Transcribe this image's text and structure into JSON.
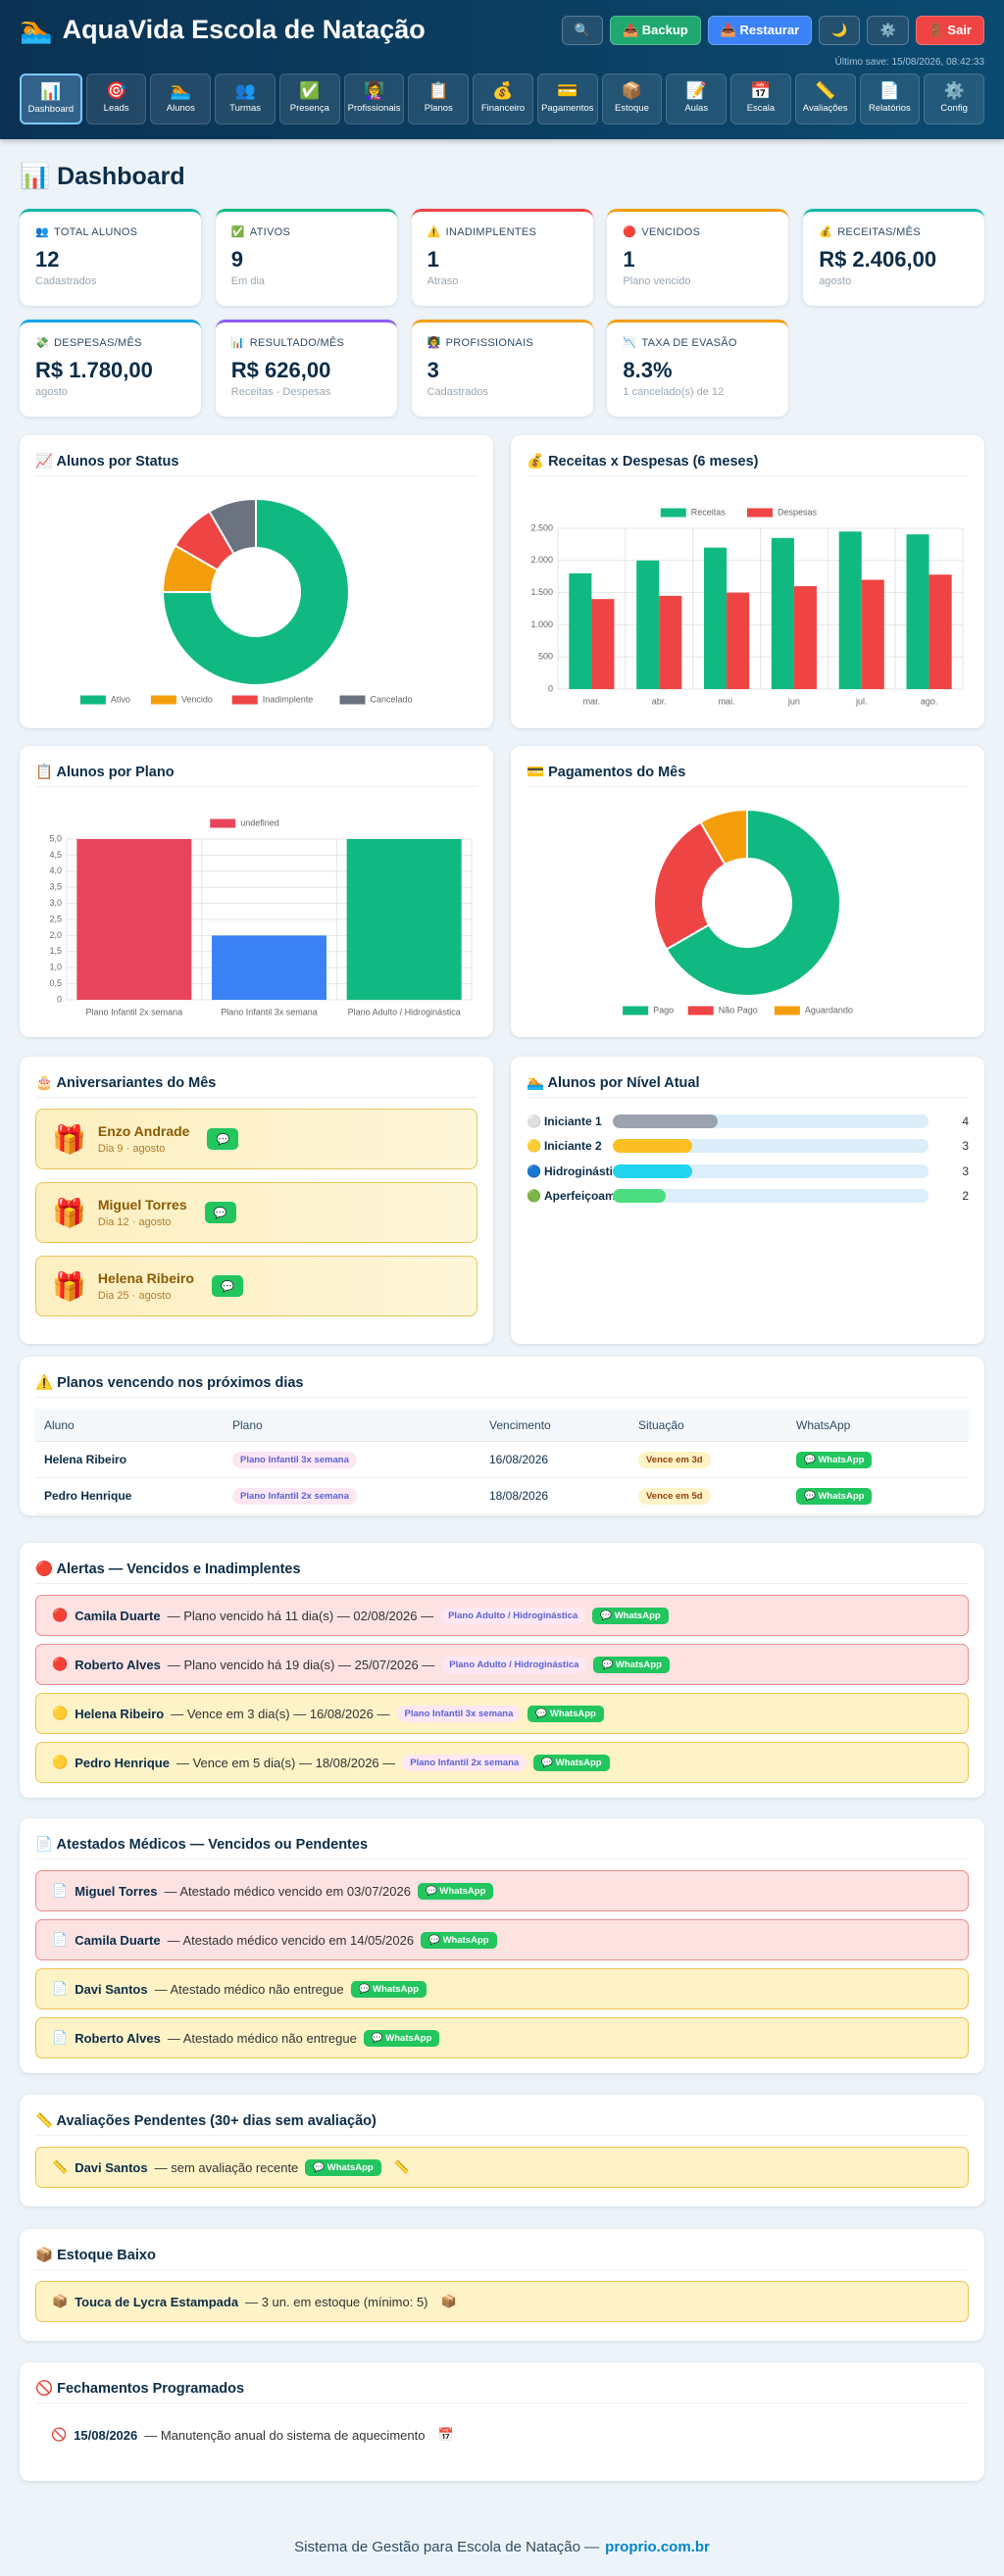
{
  "header": {
    "logo": "🏊",
    "title": "AquaVida Escola de Natação",
    "buttons": [
      {
        "label": "🔍",
        "color": "#24506f"
      },
      {
        "label": "📤 Backup",
        "color": "#1fa971"
      },
      {
        "label": "📥 Restaurar",
        "color": "#3b82f6"
      },
      {
        "label": "🌙",
        "color": "#24506f"
      },
      {
        "label": "⚙️",
        "color": "#24506f"
      },
      {
        "label": "🚪 Sair",
        "color": "#ef4444"
      }
    ],
    "last_save": "Último save: 15/08/2026, 08:42:33"
  },
  "nav": [
    {
      "icon": "📊",
      "label": "Dashboard",
      "active": true
    },
    {
      "icon": "🎯",
      "label": "Leads"
    },
    {
      "icon": "🏊",
      "label": "Alunos"
    },
    {
      "icon": "👥",
      "label": "Turmas"
    },
    {
      "icon": "✅",
      "label": "Presença"
    },
    {
      "icon": "👩‍🏫",
      "label": "Profissionais"
    },
    {
      "icon": "📋",
      "label": "Planos"
    },
    {
      "icon": "💰",
      "label": "Financeiro"
    },
    {
      "icon": "💳",
      "label": "Pagamentos"
    },
    {
      "icon": "📦",
      "label": "Estoque"
    },
    {
      "icon": "📝",
      "label": "Aulas"
    },
    {
      "icon": "📅",
      "label": "Escala"
    },
    {
      "icon": "📏",
      "label": "Avaliações"
    },
    {
      "icon": "📄",
      "label": "Relatórios"
    },
    {
      "icon": "⚙️",
      "label": "Config"
    }
  ],
  "page_title": "📊 Dashboard",
  "stats": [
    {
      "icon": "👥",
      "label": "TOTAL ALUNOS",
      "value": "12",
      "sub": "Cadastrados",
      "color": "#14b8a6"
    },
    {
      "icon": "✅",
      "label": "ATIVOS",
      "value": "9",
      "sub": "Em dia",
      "color": "#10b981"
    },
    {
      "icon": "⚠️",
      "label": "INADIMPLENTES",
      "value": "1",
      "sub": "Atraso",
      "color": "#ef4444"
    },
    {
      "icon": "🔴",
      "label": "VENCIDOS",
      "value": "1",
      "sub": "Plano vencido",
      "color": "#f59e0b"
    },
    {
      "icon": "💰",
      "label": "RECEITAS/MÊS",
      "value": "R$ 2.406,00",
      "sub": "agosto",
      "color": "#14b8a6"
    },
    {
      "icon": "💸",
      "label": "DESPESAS/MÊS",
      "value": "R$ 1.780,00",
      "sub": "agosto",
      "color": "#0ea5e9"
    },
    {
      "icon": "📊",
      "label": "RESULTADO/MÊS",
      "value": "R$ 626,00",
      "sub": "Receitas - Despesas",
      "color": "#8b5cf6"
    },
    {
      "icon": "👩‍🏫",
      "label": "PROFISSIONAIS",
      "value": "3",
      "sub": "Cadastrados",
      "color": "#f59e0b"
    },
    {
      "icon": "📉",
      "label": "TAXA DE EVASÃO",
      "value": "8.3%",
      "sub": "1 cancelado(s) de 12",
      "color": "#f59e0b"
    }
  ],
  "chart_data": [
    {
      "type": "pie",
      "title": "📈 Alunos por Status",
      "legend": "bottom",
      "categories": [
        "Ativo",
        "Vencido",
        "Inadimplente",
        "Cancelado"
      ],
      "values": [
        9,
        1,
        1,
        1
      ],
      "colors": [
        "#10b981",
        "#f59e0b",
        "#ef4444",
        "#6b7280"
      ]
    },
    {
      "type": "bar",
      "title": "💰 Receitas x Despesas (6 meses)",
      "legend": "top",
      "grid": true,
      "categories": [
        "mar.",
        "abr.",
        "mai.",
        "jun",
        "jul.",
        "ago."
      ],
      "series": [
        {
          "name": "Receitas",
          "color": "#10b981",
          "values": [
            1800,
            2000,
            2200,
            2350,
            2450,
            2406
          ]
        },
        {
          "name": "Despesas",
          "color": "#ef4444",
          "values": [
            1400,
            1450,
            1500,
            1600,
            1700,
            1780
          ]
        }
      ],
      "ylim": [
        0,
        2500
      ],
      "yticks": [
        0,
        500,
        {
          "value": 1000,
          "label": "1.000"
        },
        {
          "value": 1500,
          "label": "1.500"
        },
        {
          "value": 2000,
          "label": "2.000"
        },
        {
          "value": 2500,
          "label": "2.500"
        }
      ]
    },
    {
      "type": "bar",
      "title": "📋 Alunos por Plano",
      "legend": "top",
      "grid": true,
      "categories": [
        "Plano Infantil 2x semana",
        "Plano Infantil 3x semana",
        "Plano Adulto / Hidroginástica"
      ],
      "series": [
        {
          "name": "undefined",
          "color": "#e8455c",
          "values": [
            5,
            2,
            5
          ]
        }
      ],
      "colors": [
        "#e8455c",
        "#3b82f6",
        "#10b981"
      ],
      "ylim": [
        0,
        5
      ],
      "yticks": [
        0,
        {
          "value": 0.5,
          "label": "0,5"
        },
        {
          "value": 1,
          "label": "1,0"
        },
        {
          "value": 1.5,
          "label": "1,5"
        },
        {
          "value": 2,
          "label": "2,0"
        },
        {
          "value": 2.5,
          "label": "2,5"
        },
        {
          "value": 3,
          "label": "3,0"
        },
        {
          "value": 3.5,
          "label": "3,5"
        },
        {
          "value": 4,
          "label": "4,0"
        },
        {
          "value": 4.5,
          "label": "4,5"
        },
        {
          "value": 5,
          "label": "5,0"
        }
      ]
    },
    {
      "type": "pie",
      "title": "💳 Pagamentos do Mês",
      "legend": "bottom",
      "categories": [
        "Pago",
        "Não Pago",
        "Aguardando"
      ],
      "values": [
        8,
        3,
        1
      ],
      "colors": [
        "#10b981",
        "#ef4444",
        "#f59e0b"
      ]
    }
  ],
  "birthdays": {
    "title": "🎂 Aniversariantes do Mês",
    "icon": "🎁",
    "button": "💬",
    "items": [
      {
        "name": "Enzo Andrade",
        "date": "Dia 9 · agosto"
      },
      {
        "name": "Miguel Torres",
        "date": "Dia 12 · agosto"
      },
      {
        "name": "Helena Ribeiro",
        "date": "Dia 25 · agosto"
      }
    ]
  },
  "levels": {
    "title": "🏊 Alunos por Nível Atual",
    "items": [
      {
        "icon": "⚪",
        "name": "Iniciante 1",
        "count": 4,
        "color": "#9ca3af"
      },
      {
        "icon": "🟡",
        "name": "Iniciante 2",
        "count": 3,
        "color": "#fbbf24"
      },
      {
        "icon": "🔵",
        "name": "Hidroginástica",
        "count": 3,
        "color": "#22d3ee"
      },
      {
        "icon": "🟢",
        "name": "Aperfeiçoamento",
        "count": 2,
        "color": "#4ade80"
      }
    ]
  },
  "expiring": {
    "title": "⚠️ Planos vencendo nos próximos dias",
    "columns": [
      "Aluno",
      "Plano",
      "Vencimento",
      "Situação",
      "WhatsApp"
    ],
    "rows": [
      [
        "Helena Ribeiro",
        "Plano Infantil 3x semana",
        "16/08/2026",
        "Vence em 3d",
        "💬 WhatsApp"
      ],
      [
        "Pedro Henrique",
        "Plano Infantil 2x semana",
        "18/08/2026",
        "Vence em 5d",
        "💬 WhatsApp"
      ]
    ]
  },
  "alerts": {
    "title": "🔴 Alertas — Vencidos e Inadimplentes",
    "items": [
      {
        "level": "red",
        "icon": "🔴",
        "name": "Camila Duarte",
        "text": "— Plano vencido há 11 dia(s) — 02/08/2026 —",
        "plan": "Plano Adulto / Hidroginástica",
        "button": "💬 WhatsApp"
      },
      {
        "level": "red",
        "icon": "🔴",
        "name": "Roberto Alves",
        "text": "— Plano vencido há 19 dia(s) — 25/07/2026 —",
        "plan": "Plano Adulto / Hidroginástica",
        "button": "💬 WhatsApp"
      },
      {
        "level": "yellow",
        "icon": "🟡",
        "name": "Helena Ribeiro",
        "text": "— Vence em 3 dia(s) — 16/08/2026 —",
        "plan": "Plano Infantil 3x semana",
        "button": "💬 WhatsApp"
      },
      {
        "level": "yellow",
        "icon": "🟡",
        "name": "Pedro Henrique",
        "text": "— Vence em 5 dia(s) — 18/08/2026 —",
        "plan": "Plano Infantil 2x semana",
        "button": "💬 WhatsApp"
      }
    ]
  },
  "certificates": {
    "title": "📄 Atestados Médicos — Vencidos ou Pendentes",
    "items": [
      {
        "level": "red",
        "icon": "📄",
        "name": "Miguel Torres",
        "text": "— Atestado médico vencido em 03/07/2026",
        "button": "💬 WhatsApp"
      },
      {
        "level": "red",
        "icon": "📄",
        "name": "Camila Duarte",
        "text": "— Atestado médico vencido em 14/05/2026",
        "button": "💬 WhatsApp"
      },
      {
        "level": "yellow",
        "icon": "📄",
        "name": "Davi Santos",
        "text": "— Atestado médico não entregue",
        "button": "💬 WhatsApp"
      },
      {
        "level": "yellow",
        "icon": "📄",
        "name": "Roberto Alves",
        "text": "— Atestado médico não entregue",
        "button": "💬 WhatsApp"
      }
    ]
  },
  "evaluations": {
    "title": "📏 Avaliações Pendentes (30+ dias sem avaliação)",
    "items": [
      {
        "level": "yellow",
        "icon": "📏",
        "name": "Davi Santos",
        "text": "— sem avaliação recente",
        "button": "💬 WhatsApp",
        "trail": "📏"
      }
    ]
  },
  "stock": {
    "title": "📦 Estoque Baixo",
    "items": [
      {
        "level": "yellow",
        "icon": "📦",
        "name": "Touca de Lycra Estampada",
        "text": "— 3 un. em estoque (mínimo: 5)",
        "trail": "📦"
      }
    ]
  },
  "closures": {
    "title": "🚫 Fechamentos Programados",
    "items": [
      {
        "level": "plain",
        "icon": "🚫",
        "name": "15/08/2026",
        "text": "— Manutenção anual do sistema de aquecimento",
        "trail": "📅"
      }
    ]
  },
  "footer": {
    "text": "Sistema de Gestão para Escola de Natação —",
    "link": "proprio.com.br"
  }
}
